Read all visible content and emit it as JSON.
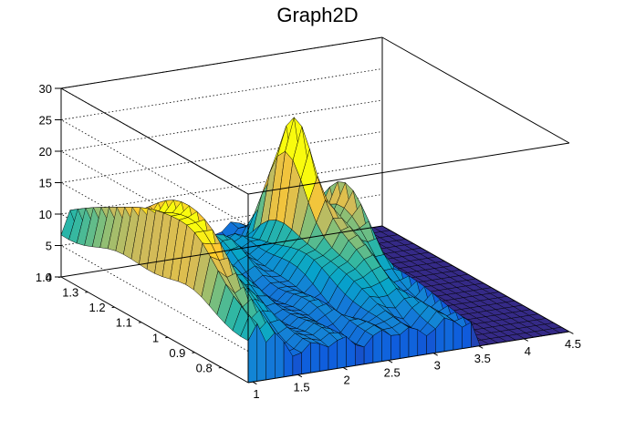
{
  "chart_data": {
    "type": "surface",
    "title": "Graph2D",
    "xlabel": "",
    "ylabel": "",
    "zlabel": "",
    "xlim": [
      0.95,
      4.5
    ],
    "ylim": [
      0.7,
      1.4
    ],
    "zlim": [
      0,
      30
    ],
    "x_ticks": [
      "1",
      "1.5",
      "2",
      "2.5",
      "3",
      "3.5",
      "4",
      "4.5"
    ],
    "y_ticks": [
      "0.8",
      "0.9",
      "1",
      "1.1",
      "1.2",
      "1.3",
      "1.4"
    ],
    "z_ticks": [
      "0",
      "5",
      "10",
      "15",
      "20",
      "25",
      "30"
    ],
    "x_tick_values": [
      1,
      1.5,
      2,
      2.5,
      3,
      3.5,
      4,
      4.5
    ],
    "y_tick_values": [
      0.8,
      0.9,
      1.0,
      1.1,
      1.2,
      1.3,
      1.4
    ],
    "z_tick_values": [
      0,
      5,
      10,
      15,
      20,
      25,
      30
    ],
    "grid": true,
    "colormap": "parula",
    "colormap_stops": [
      "#352a87",
      "#0f5cdd",
      "#1481d6",
      "#06a4ca",
      "#2eb7a4",
      "#87bf77",
      "#d1bb59",
      "#fec832",
      "#f9fb0e"
    ],
    "peaks": [
      {
        "x": 1.05,
        "y": 1.05,
        "z": 9,
        "sx": 0.13,
        "sy": 0.28
      },
      {
        "x": 1.25,
        "y": 1.08,
        "z": 12,
        "sx": 0.12,
        "sy": 0.28
      },
      {
        "x": 1.15,
        "y": 0.92,
        "z": 5,
        "sx": 0.15,
        "sy": 0.1
      },
      {
        "x": 1.55,
        "y": 1.1,
        "z": 8,
        "sx": 0.25,
        "sy": 0.2
      },
      {
        "x": 2.1,
        "y": 1.25,
        "z": 3,
        "sx": 0.6,
        "sy": 0.15
      },
      {
        "x": 2.9,
        "y": 1.2,
        "z": 16,
        "sx": 0.14,
        "sy": 0.1
      },
      {
        "x": 2.95,
        "y": 1.05,
        "z": 8,
        "sx": 0.3,
        "sy": 0.18
      },
      {
        "x": 3.3,
        "y": 1.15,
        "z": 10,
        "sx": 0.12,
        "sy": 0.12
      },
      {
        "x": 2.3,
        "y": 1.35,
        "z": 4,
        "sx": 0.5,
        "sy": 0.06
      }
    ],
    "peak_sign": [
      1,
      1,
      1,
      1,
      1,
      1,
      1,
      1,
      -1
    ],
    "baseline": 4,
    "cutoff_x": 3.45,
    "ridge": {
      "x": 1.02,
      "z": 4.5,
      "sx": 0.06
    },
    "grid_size": {
      "nx": 36,
      "ny": 24
    }
  }
}
